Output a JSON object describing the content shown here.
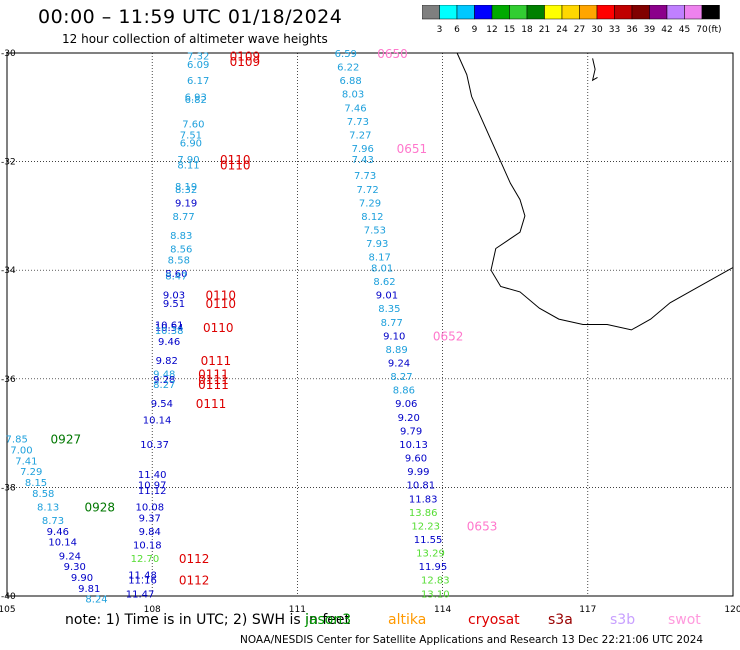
{
  "title": "00:00 – 11:59 UTC 01/18/2024",
  "subtitle": "12 hour collection of altimeter wave heights",
  "color_scale": {
    "unit": "(ft)",
    "labels": [
      "3",
      "6",
      "9",
      "12",
      "15",
      "18",
      "21",
      "24",
      "27",
      "30",
      "33",
      "36",
      "39",
      "42",
      "45",
      "70"
    ],
    "colors": [
      "#7f7f7f",
      "#00ffff",
      "#00c8ff",
      "#0000ff",
      "#00aa00",
      "#32cd32",
      "#008000",
      "#ffff00",
      "#ffd700",
      "#ffa500",
      "#ff0000",
      "#c00000",
      "#800000",
      "#8b008b",
      "#c080ff",
      "#ee82ee",
      "#000000"
    ]
  },
  "axes": {
    "lon_ticks": [
      "105",
      "108",
      "111",
      "114",
      "117",
      "120"
    ],
    "lat_ticks": [
      "-30",
      "-32",
      "-34",
      "-36",
      "-38",
      "-40"
    ]
  },
  "colors": {
    "cyan": "#1ea0dc",
    "blue": "#0000c8",
    "green": "#55dd33",
    "red": "#dd0000",
    "darkgreen": "#007700",
    "pink": "#ff77cc"
  },
  "observations": [
    {
      "label": "7.32",
      "lon": 108.95,
      "lat": -30.05,
      "color": "cyan"
    },
    {
      "label": "6.09",
      "lon": 108.95,
      "lat": -30.2,
      "color": "cyan"
    },
    {
      "label": "6.17",
      "lon": 108.95,
      "lat": -30.5,
      "color": "cyan"
    },
    {
      "label": "6.93",
      "lon": 108.9,
      "lat": -30.8,
      "color": "cyan"
    },
    {
      "label": "6.82",
      "lon": 108.9,
      "lat": -30.85,
      "color": "cyan"
    },
    {
      "label": "7.60",
      "lon": 108.85,
      "lat": -31.3,
      "color": "cyan"
    },
    {
      "label": "7.51",
      "lon": 108.8,
      "lat": -31.5,
      "color": "cyan"
    },
    {
      "label": "6.90",
      "lon": 108.8,
      "lat": -31.65,
      "color": "cyan"
    },
    {
      "label": "7.90",
      "lon": 108.75,
      "lat": -31.95,
      "color": "cyan"
    },
    {
      "label": "8.11",
      "lon": 108.75,
      "lat": -32.05,
      "color": "cyan"
    },
    {
      "label": "8.19",
      "lon": 108.7,
      "lat": -32.45,
      "color": "cyan"
    },
    {
      "label": "8.32",
      "lon": 108.7,
      "lat": -32.5,
      "color": "cyan"
    },
    {
      "label": "9.19",
      "lon": 108.7,
      "lat": -32.75,
      "color": "blue"
    },
    {
      "label": "8.77",
      "lon": 108.65,
      "lat": -33.0,
      "color": "cyan"
    },
    {
      "label": "8.83",
      "lon": 108.6,
      "lat": -33.35,
      "color": "cyan"
    },
    {
      "label": "8.56",
      "lon": 108.6,
      "lat": -33.6,
      "color": "cyan"
    },
    {
      "label": "8.58",
      "lon": 108.55,
      "lat": -33.8,
      "color": "cyan"
    },
    {
      "label": "8.60",
      "lon": 108.5,
      "lat": -34.05,
      "color": "blue"
    },
    {
      "label": "8.47",
      "lon": 108.5,
      "lat": -34.1,
      "color": "cyan"
    },
    {
      "label": "9.03",
      "lon": 108.45,
      "lat": -34.45,
      "color": "blue"
    },
    {
      "label": "9.51",
      "lon": 108.45,
      "lat": -34.6,
      "color": "blue"
    },
    {
      "label": "10.61",
      "lon": 108.35,
      "lat": -35.0,
      "color": "blue"
    },
    {
      "label": "10.54",
      "lon": 108.35,
      "lat": -35.05,
      "color": "blue"
    },
    {
      "label": "10.38",
      "lon": 108.35,
      "lat": -35.1,
      "color": "cyan"
    },
    {
      "label": "9.46",
      "lon": 108.35,
      "lat": -35.3,
      "color": "blue"
    },
    {
      "label": "9.82",
      "lon": 108.3,
      "lat": -35.65,
      "color": "blue"
    },
    {
      "label": "9.48",
      "lon": 108.25,
      "lat": -35.9,
      "color": "cyan"
    },
    {
      "label": "9.28",
      "lon": 108.25,
      "lat": -36.0,
      "color": "blue"
    },
    {
      "label": "8.27",
      "lon": 108.25,
      "lat": -36.1,
      "color": "cyan"
    },
    {
      "label": "9.54",
      "lon": 108.2,
      "lat": -36.45,
      "color": "blue"
    },
    {
      "label": "10.14",
      "lon": 108.1,
      "lat": -36.75,
      "color": "blue"
    },
    {
      "label": "10.37",
      "lon": 108.05,
      "lat": -37.2,
      "color": "blue"
    },
    {
      "label": "11.40",
      "lon": 108.0,
      "lat": -37.75,
      "color": "blue"
    },
    {
      "label": "10.97",
      "lon": 108.0,
      "lat": -37.95,
      "color": "blue"
    },
    {
      "label": "11.12",
      "lon": 108.0,
      "lat": -38.05,
      "color": "blue"
    },
    {
      "label": "10.08",
      "lon": 107.95,
      "lat": -38.35,
      "color": "blue"
    },
    {
      "label": "9.37",
      "lon": 107.95,
      "lat": -38.55,
      "color": "blue"
    },
    {
      "label": "9.84",
      "lon": 107.95,
      "lat": -38.8,
      "color": "blue"
    },
    {
      "label": "10.18",
      "lon": 107.9,
      "lat": -39.05,
      "color": "blue"
    },
    {
      "label": "12.70",
      "lon": 107.85,
      "lat": -39.3,
      "color": "green"
    },
    {
      "label": "11.48",
      "lon": 107.8,
      "lat": -39.6,
      "color": "blue"
    },
    {
      "label": "11.16",
      "lon": 107.8,
      "lat": -39.7,
      "color": "blue"
    },
    {
      "label": "11.47",
      "lon": 107.75,
      "lat": -39.95,
      "color": "blue"
    },
    {
      "label": "6.59",
      "lon": 112.0,
      "lat": -30.0,
      "color": "cyan"
    },
    {
      "label": "6.22",
      "lon": 112.05,
      "lat": -30.25,
      "color": "cyan"
    },
    {
      "label": "6.88",
      "lon": 112.1,
      "lat": -30.5,
      "color": "cyan"
    },
    {
      "label": "8.03",
      "lon": 112.15,
      "lat": -30.75,
      "color": "cyan"
    },
    {
      "label": "7.46",
      "lon": 112.2,
      "lat": -31.0,
      "color": "cyan"
    },
    {
      "label": "7.73",
      "lon": 112.25,
      "lat": -31.25,
      "color": "cyan"
    },
    {
      "label": "7.27",
      "lon": 112.3,
      "lat": -31.5,
      "color": "cyan"
    },
    {
      "label": "7.96",
      "lon": 112.35,
      "lat": -31.75,
      "color": "cyan"
    },
    {
      "label": "7.43",
      "lon": 112.35,
      "lat": -31.95,
      "color": "cyan"
    },
    {
      "label": "7.73",
      "lon": 112.4,
      "lat": -32.25,
      "color": "cyan"
    },
    {
      "label": "7.72",
      "lon": 112.45,
      "lat": -32.5,
      "color": "cyan"
    },
    {
      "label": "7.29",
      "lon": 112.5,
      "lat": -32.75,
      "color": "cyan"
    },
    {
      "label": "8.12",
      "lon": 112.55,
      "lat": -33.0,
      "color": "cyan"
    },
    {
      "label": "7.53",
      "lon": 112.6,
      "lat": -33.25,
      "color": "cyan"
    },
    {
      "label": "7.93",
      "lon": 112.65,
      "lat": -33.5,
      "color": "cyan"
    },
    {
      "label": "8.17",
      "lon": 112.7,
      "lat": -33.75,
      "color": "cyan"
    },
    {
      "label": "8.01",
      "lon": 112.75,
      "lat": -33.95,
      "color": "cyan"
    },
    {
      "label": "8.62",
      "lon": 112.8,
      "lat": -34.2,
      "color": "cyan"
    },
    {
      "label": "9.01",
      "lon": 112.85,
      "lat": -34.45,
      "color": "blue"
    },
    {
      "label": "8.35",
      "lon": 112.9,
      "lat": -34.7,
      "color": "cyan"
    },
    {
      "label": "8.77",
      "lon": 112.95,
      "lat": -34.95,
      "color": "cyan"
    },
    {
      "label": "9.10",
      "lon": 113.0,
      "lat": -35.2,
      "color": "blue"
    },
    {
      "label": "8.89",
      "lon": 113.05,
      "lat": -35.45,
      "color": "cyan"
    },
    {
      "label": "9.24",
      "lon": 113.1,
      "lat": -35.7,
      "color": "blue"
    },
    {
      "label": "8.27",
      "lon": 113.15,
      "lat": -35.95,
      "color": "cyan"
    },
    {
      "label": "8.86",
      "lon": 113.2,
      "lat": -36.2,
      "color": "cyan"
    },
    {
      "label": "9.06",
      "lon": 113.25,
      "lat": -36.45,
      "color": "blue"
    },
    {
      "label": "9.20",
      "lon": 113.3,
      "lat": -36.7,
      "color": "blue"
    },
    {
      "label": "9.79",
      "lon": 113.35,
      "lat": -36.95,
      "color": "blue"
    },
    {
      "label": "10.13",
      "lon": 113.4,
      "lat": -37.2,
      "color": "blue"
    },
    {
      "label": "9.60",
      "lon": 113.45,
      "lat": -37.45,
      "color": "blue"
    },
    {
      "label": "9.99",
      "lon": 113.5,
      "lat": -37.7,
      "color": "blue"
    },
    {
      "label": "10.81",
      "lon": 113.55,
      "lat": -37.95,
      "color": "blue"
    },
    {
      "label": "11.83",
      "lon": 113.6,
      "lat": -38.2,
      "color": "blue"
    },
    {
      "label": "13.86",
      "lon": 113.6,
      "lat": -38.45,
      "color": "green"
    },
    {
      "label": "12.23",
      "lon": 113.65,
      "lat": -38.7,
      "color": "green"
    },
    {
      "label": "11.55",
      "lon": 113.7,
      "lat": -38.95,
      "color": "blue"
    },
    {
      "label": "13.29",
      "lon": 113.75,
      "lat": -39.2,
      "color": "green"
    },
    {
      "label": "11.95",
      "lon": 113.8,
      "lat": -39.45,
      "color": "blue"
    },
    {
      "label": "12.83",
      "lon": 113.85,
      "lat": -39.7,
      "color": "green"
    },
    {
      "label": "13.10",
      "lon": 113.85,
      "lat": -39.95,
      "color": "green"
    },
    {
      "label": "7.85",
      "lon": 105.2,
      "lat": -37.1,
      "color": "cyan"
    },
    {
      "label": "7.00",
      "lon": 105.3,
      "lat": -37.3,
      "color": "cyan"
    },
    {
      "label": "7.41",
      "lon": 105.4,
      "lat": -37.5,
      "color": "cyan"
    },
    {
      "label": "7.29",
      "lon": 105.5,
      "lat": -37.7,
      "color": "cyan"
    },
    {
      "label": "8.15",
      "lon": 105.6,
      "lat": -37.9,
      "color": "cyan"
    },
    {
      "label": "8.58",
      "lon": 105.75,
      "lat": -38.1,
      "color": "cyan"
    },
    {
      "label": "8.13",
      "lon": 105.85,
      "lat": -38.35,
      "color": "cyan"
    },
    {
      "label": "8.73",
      "lon": 105.95,
      "lat": -38.6,
      "color": "cyan"
    },
    {
      "label": "9.46",
      "lon": 106.05,
      "lat": -38.8,
      "color": "blue"
    },
    {
      "label": "10.14",
      "lon": 106.15,
      "lat": -39.0,
      "color": "blue"
    },
    {
      "label": "9.24",
      "lon": 106.3,
      "lat": -39.25,
      "color": "blue"
    },
    {
      "label": "9.30",
      "lon": 106.4,
      "lat": -39.45,
      "color": "blue"
    },
    {
      "label": "9.90",
      "lon": 106.55,
      "lat": -39.65,
      "color": "blue"
    },
    {
      "label": "9.81",
      "lon": 106.7,
      "lat": -39.85,
      "color": "blue"
    },
    {
      "label": "8.24",
      "lon": 106.85,
      "lat": -40.05,
      "color": "cyan"
    }
  ],
  "pass_times": [
    {
      "label": "0109",
      "lon": 109.6,
      "lat": -30.05,
      "color": "red"
    },
    {
      "label": "0109",
      "lon": 109.6,
      "lat": -30.15,
      "color": "red"
    },
    {
      "label": "0110",
      "lon": 109.4,
      "lat": -31.95,
      "color": "red"
    },
    {
      "label": "0110",
      "lon": 109.4,
      "lat": -32.05,
      "color": "red"
    },
    {
      "label": "0110",
      "lon": 109.1,
      "lat": -34.45,
      "color": "red"
    },
    {
      "label": "0110",
      "lon": 109.1,
      "lat": -34.6,
      "color": "red"
    },
    {
      "label": "0110",
      "lon": 109.05,
      "lat": -35.05,
      "color": "red"
    },
    {
      "label": "0111",
      "lon": 109.0,
      "lat": -35.65,
      "color": "red"
    },
    {
      "label": "0111",
      "lon": 108.95,
      "lat": -35.9,
      "color": "red"
    },
    {
      "label": "0111",
      "lon": 108.95,
      "lat": -36.0,
      "color": "red"
    },
    {
      "label": "0111",
      "lon": 108.95,
      "lat": -36.1,
      "color": "red"
    },
    {
      "label": "0111",
      "lon": 108.9,
      "lat": -36.45,
      "color": "red"
    },
    {
      "label": "0112",
      "lon": 108.55,
      "lat": -39.3,
      "color": "red"
    },
    {
      "label": "0112",
      "lon": 108.55,
      "lat": -39.7,
      "color": "red"
    },
    {
      "label": "0650",
      "lon": 112.65,
      "lat": -30.0,
      "color": "pink"
    },
    {
      "label": "0651",
      "lon": 113.05,
      "lat": -31.75,
      "color": "pink"
    },
    {
      "label": "0652",
      "lon": 113.8,
      "lat": -35.2,
      "color": "pink"
    },
    {
      "label": "0653",
      "lon": 114.5,
      "lat": -38.7,
      "color": "pink"
    },
    {
      "label": "0927",
      "lon": 105.9,
      "lat": -37.1,
      "color": "darkgreen"
    },
    {
      "label": "0928",
      "lon": 106.6,
      "lat": -38.35,
      "color": "darkgreen"
    }
  ],
  "note": "note: 1) Time is in UTC; 2) SWH is in feet",
  "satellites": [
    {
      "label": "jason3",
      "color": "#009900"
    },
    {
      "label": "altika",
      "color": "#ff9900"
    },
    {
      "label": "cryosat",
      "color": "#dd0000"
    },
    {
      "label": "s3a",
      "color": "#990000"
    },
    {
      "label": "s3b",
      "color": "#c8a0ff"
    },
    {
      "label": "swot",
      "color": "#ff99dd"
    }
  ],
  "footer": "NOAA/NESDIS Center for Satellite Applications and Research   13 Dec 22:21:06 UTC 2024"
}
